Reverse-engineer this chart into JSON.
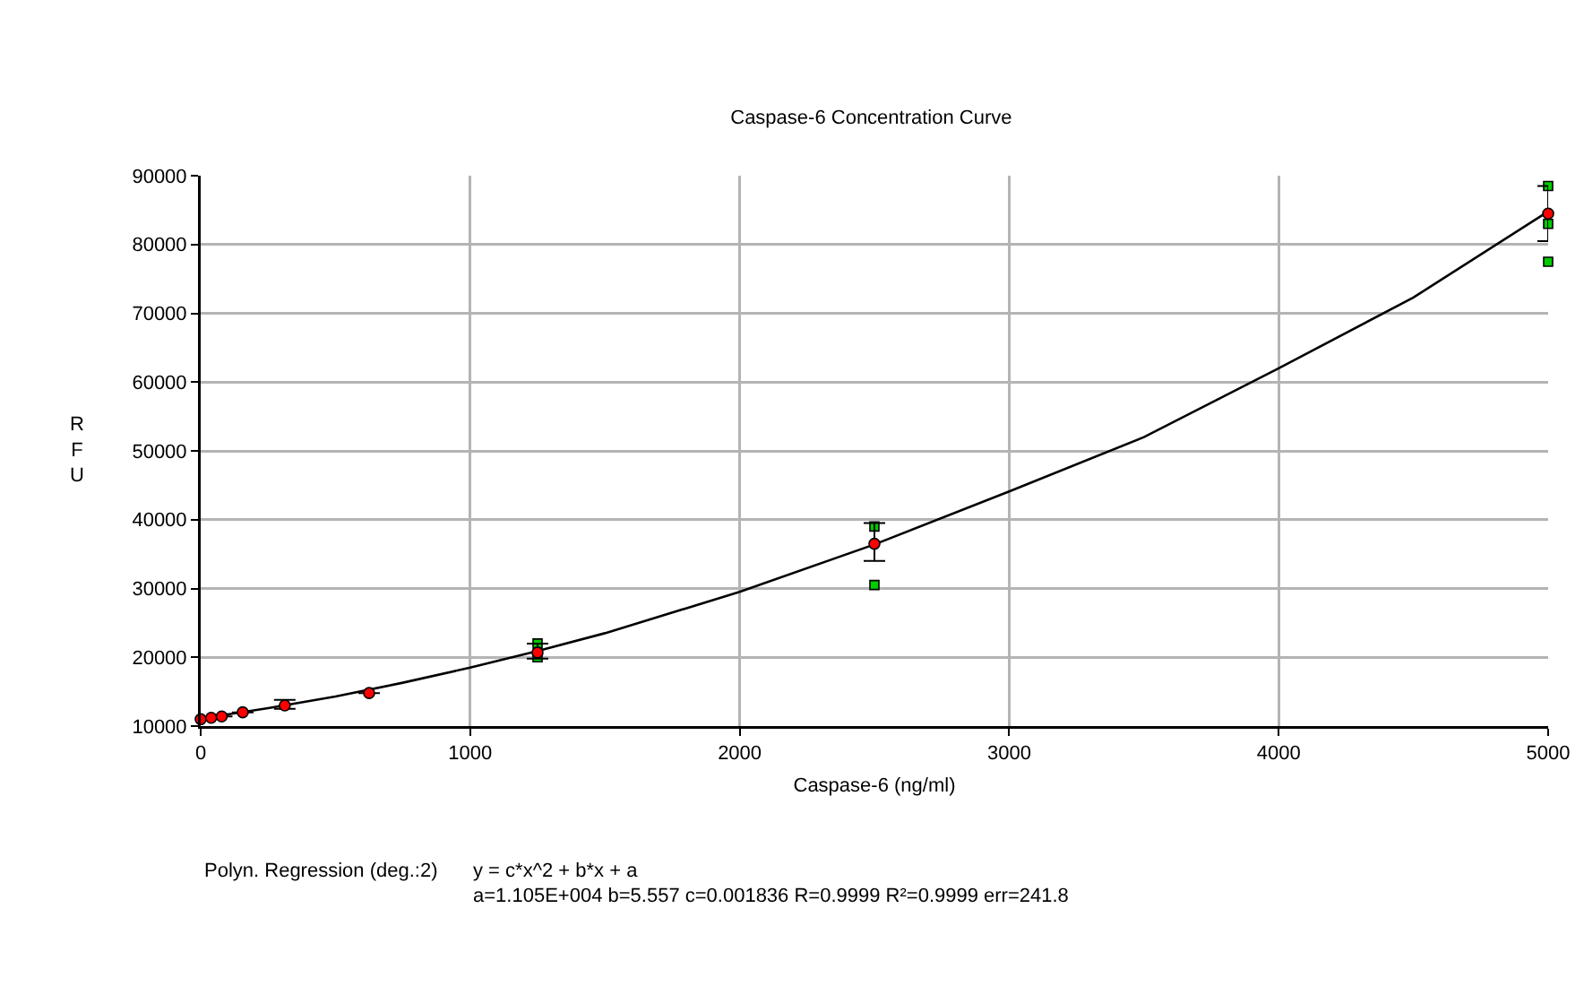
{
  "chart_data": {
    "type": "scatter",
    "title": "Caspase-6 Concentration Curve",
    "xlabel": "Caspase-6 (ng/ml)",
    "ylabel": "RFU",
    "xlim": [
      0,
      5000
    ],
    "xticks": [
      0,
      1000,
      2000,
      3000,
      4000,
      5000
    ],
    "ylim": [
      10000,
      90000
    ],
    "yticks": [
      10000,
      20000,
      30000,
      40000,
      50000,
      60000,
      70000,
      80000,
      90000
    ],
    "grid": true,
    "series": [
      {
        "type": "line",
        "color": "#000000",
        "marker": "none",
        "line_style": "solid",
        "x": [
          0,
          250,
          500,
          750,
          1000,
          1250,
          1500,
          2000,
          2500,
          3000,
          3500,
          4000,
          4500,
          5000
        ],
        "values": [
          11100,
          12600,
          14300,
          16300,
          18500,
          20900,
          23500,
          29500,
          36400,
          44100,
          52000,
          62000,
          72300,
          84800
        ]
      },
      {
        "color": "#00cc00",
        "marker": "square",
        "x": [
          1250,
          1250,
          2500,
          2500,
          5000,
          5000,
          5000
        ],
        "values": [
          22000,
          20000,
          39000,
          30500,
          88500,
          83000,
          77500
        ]
      },
      {
        "color": "#ff0000",
        "marker": "circle",
        "x": [
          0,
          39,
          78,
          156,
          312,
          625,
          1250,
          2500,
          5000
        ],
        "values": [
          11000,
          11200,
          11400,
          12000,
          13000,
          14800,
          20700,
          36500,
          84500
        ],
        "errors": [
          null,
          null,
          null,
          null,
          [
            12500,
            13800
          ],
          null,
          [
            19800,
            22000
          ],
          [
            34000,
            39500
          ],
          [
            80500,
            88500
          ]
        ]
      }
    ],
    "annotations": [
      "Polyn. Regression (deg.:2)",
      "y = c*x^2 + b*x + a",
      "a=1.105E+004 b=5.557 c=0.001836 R=0.9999 R²=0.9999 err=241.8"
    ]
  }
}
